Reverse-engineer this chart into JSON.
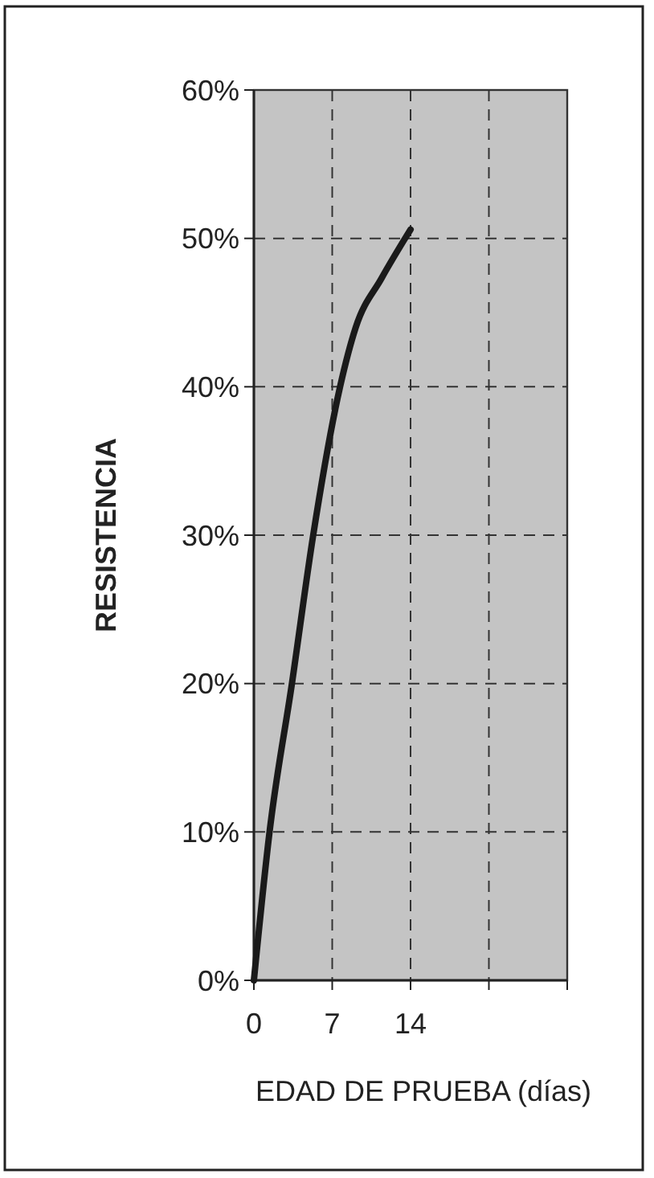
{
  "chart_data": {
    "type": "line",
    "xlabel": "EDAD DE PRUEBA (días)",
    "ylabel": "RESISTENCIA",
    "x": [
      0,
      1.4,
      3.4,
      5.3,
      7.7,
      9.1,
      11.4,
      14
    ],
    "series": [
      {
        "color": "#1a1a1a",
        "values": [
          0,
          10,
          20,
          30,
          40,
          44,
          47.3,
          50.6
        ]
      }
    ],
    "xlim": [
      0,
      28
    ],
    "xticks": [
      0,
      7,
      14,
      {
        "value": 21,
        "label": null
      },
      {
        "value": 28,
        "label": null
      }
    ],
    "ylim": [
      0,
      60
    ],
    "yticks": [
      {
        "value": 0,
        "label": "0%"
      },
      {
        "value": 10,
        "label": "10%"
      },
      {
        "value": 20,
        "label": "20%"
      },
      {
        "value": 30,
        "label": "30%"
      },
      {
        "value": 40,
        "label": "40%"
      },
      {
        "value": 50,
        "label": "50%"
      },
      {
        "value": 60,
        "label": "60%"
      }
    ],
    "grid": true,
    "marker": "none",
    "line_style": "solid"
  }
}
